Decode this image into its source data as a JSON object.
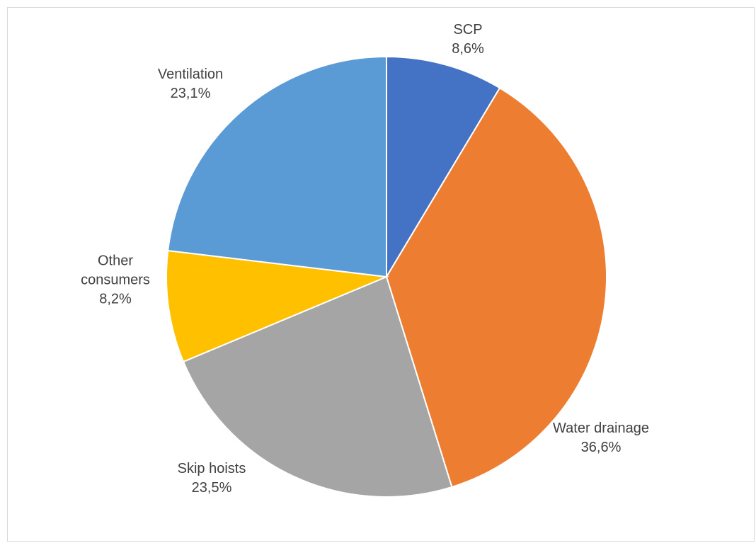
{
  "chart_data": {
    "type": "pie",
    "title": "",
    "slices": [
      {
        "label": "SCP",
        "value": 8.6,
        "value_label": "8,6%",
        "color": "#4472c4"
      },
      {
        "label": "Water drainage",
        "value": 36.6,
        "value_label": "36,6%",
        "color": "#ed7d31"
      },
      {
        "label": "Skip hoists",
        "value": 23.5,
        "value_label": "23,5%",
        "color": "#a5a5a5"
      },
      {
        "label": "Other consumers",
        "value": 8.2,
        "value_label": "8,2%",
        "color": "#ffc000"
      },
      {
        "label": "Ventilation",
        "value": 23.1,
        "value_label": "23,1%",
        "color": "#5b9bd5"
      }
    ],
    "start_angle": "12 o'clock",
    "direction": "clockwise",
    "legend": "none",
    "data_labels": "outside"
  }
}
